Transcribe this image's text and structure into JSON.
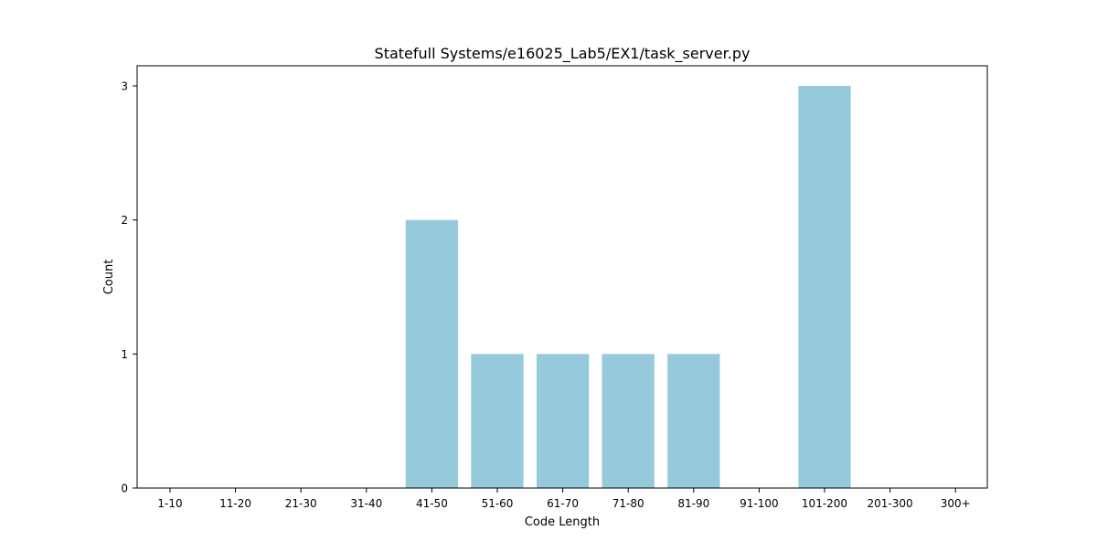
{
  "chart_data": {
    "type": "bar",
    "title": "Statefull Systems/e16025_Lab5/EX1/task_server.py",
    "xlabel": "Code Length",
    "ylabel": "Count",
    "categories": [
      "1-10",
      "11-20",
      "21-30",
      "31-40",
      "41-50",
      "51-60",
      "61-70",
      "71-80",
      "81-90",
      "91-100",
      "101-200",
      "201-300",
      "300+"
    ],
    "values": [
      0,
      0,
      0,
      0,
      2,
      1,
      1,
      1,
      1,
      0,
      3,
      0,
      0
    ],
    "ylim": [
      0,
      3.15
    ],
    "yticks": [
      0,
      1,
      2,
      3
    ],
    "bar_color": "#96c9dc",
    "grid": false,
    "legend": "none"
  }
}
